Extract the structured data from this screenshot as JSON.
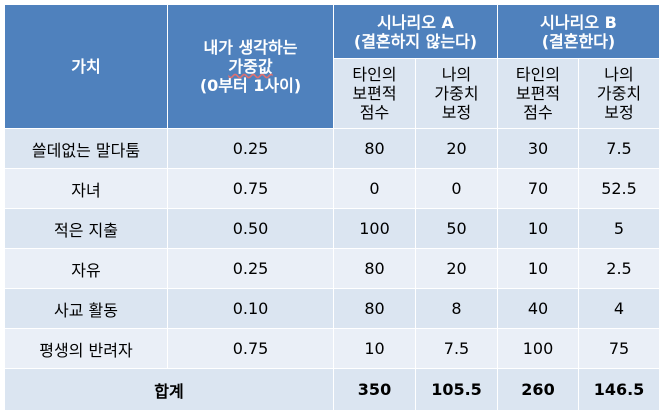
{
  "headers": {
    "value": "가치",
    "weight_lines": [
      "내가 생각하는",
      "가중값",
      "(0부터 1사이)"
    ],
    "scenario_a_lines": [
      "시나리오 A",
      "(결혼하지 않는다)"
    ],
    "scenario_b_lines": [
      "시나리오 B",
      "(결혼한다)"
    ],
    "score_lines": [
      "타인의",
      "보편적",
      "점수"
    ],
    "weighted_lines": [
      "나의",
      "가중치",
      "보정"
    ]
  },
  "rows": [
    {
      "value": "쓸데없는 말다툼",
      "weight": "0.25",
      "a_score": "80",
      "a_weighted": "20",
      "b_score": "30",
      "b_weighted": "7.5"
    },
    {
      "value": "자녀",
      "weight": "0.75",
      "a_score": "0",
      "a_weighted": "0",
      "b_score": "70",
      "b_weighted": "52.5"
    },
    {
      "value": "적은 지출",
      "weight": "0.50",
      "a_score": "100",
      "a_weighted": "50",
      "b_score": "10",
      "b_weighted": "5"
    },
    {
      "value": "자유",
      "weight": "0.25",
      "a_score": "80",
      "a_weighted": "20",
      "b_score": "10",
      "b_weighted": "2.5"
    },
    {
      "value": "사교 활동",
      "weight": "0.10",
      "a_score": "80",
      "a_weighted": "8",
      "b_score": "40",
      "b_weighted": "4"
    },
    {
      "value": "평생의 반려자",
      "weight": "0.75",
      "a_score": "10",
      "a_weighted": "7.5",
      "b_score": "100",
      "b_weighted": "75"
    }
  ],
  "total": {
    "label": "합계",
    "a_score": "350",
    "a_weighted": "105.5",
    "b_score": "260",
    "b_weighted": "146.5"
  },
  "colors": {
    "header": "#4f81bd",
    "row_dark": "#dbe5f1",
    "row_light": "#eaeff7"
  }
}
